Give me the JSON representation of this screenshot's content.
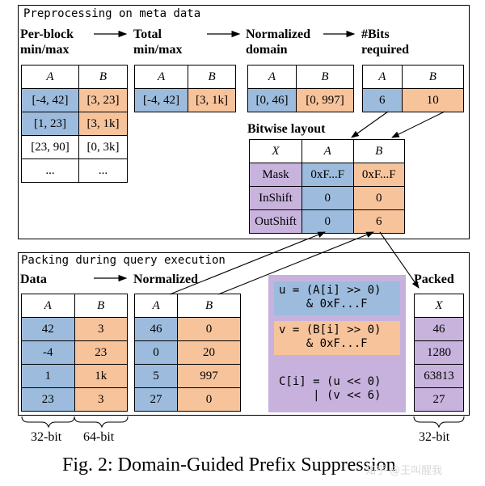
{
  "top": {
    "title": "Preprocessing on meta data",
    "heads": {
      "per_block": "Per-block\nmin/max",
      "total": "Total\nmin/max",
      "normalized": "Normalized\ndomain",
      "bits": "#Bits\nrequired",
      "bitwise": "Bitwise layout"
    },
    "per_block_table": {
      "cols": [
        "A",
        "B"
      ],
      "rows": [
        [
          "[-4, 42]",
          "[3, 23]"
        ],
        [
          "[1, 23]",
          "[3, 1k]"
        ],
        [
          "[23, 90]",
          "[0, 3k]"
        ],
        [
          "...",
          "..."
        ]
      ]
    },
    "total_table": {
      "cols": [
        "A",
        "B"
      ],
      "row": [
        "[-4, 42]",
        "[3, 1k]"
      ]
    },
    "norm_table": {
      "cols": [
        "A",
        "B"
      ],
      "row": [
        "[0, 46]",
        "[0, 997]"
      ]
    },
    "bits_table": {
      "cols": [
        "A",
        "B"
      ],
      "row": [
        "6",
        "10"
      ]
    },
    "layout_table": {
      "cols": [
        "X",
        "A",
        "B"
      ],
      "rows": [
        [
          "Mask",
          "0xF...F",
          "0xF...F"
        ],
        [
          "InShift",
          "0",
          "0"
        ],
        [
          "OutShift",
          "0",
          "6"
        ]
      ]
    }
  },
  "bottom": {
    "title": "Packing during query execution",
    "heads": {
      "data": "Data",
      "normalized": "Normalized",
      "packed": "Packed"
    },
    "data_table": {
      "cols": [
        "A",
        "B"
      ],
      "rows": [
        [
          "42",
          "3"
        ],
        [
          "-4",
          "23"
        ],
        [
          "1",
          "1k"
        ],
        [
          "23",
          "3"
        ]
      ]
    },
    "norm_table": {
      "cols": [
        "A",
        "B"
      ],
      "rows": [
        [
          "46",
          "0"
        ],
        [
          "0",
          "20"
        ],
        [
          "5",
          "997"
        ],
        [
          "27",
          "0"
        ]
      ]
    },
    "code": {
      "u": "u = (A[i] >> 0)\n    & 0xF...F",
      "v": "v = (B[i] >> 0)\n    & 0xF...F",
      "c": "C[i] = (u << 0)\n     | (v << 6)"
    },
    "packed_table": {
      "cols": [
        "X"
      ],
      "rows": [
        [
          "46"
        ],
        [
          "1280"
        ],
        [
          "63813"
        ],
        [
          "27"
        ]
      ]
    }
  },
  "labels": {
    "a_bits": "32-bit",
    "b_bits": "64-bit",
    "x_bits": "32-bit"
  },
  "caption": "Fig. 2: Domain-Guided Prefix Suppression",
  "watermark": "知乎 @王叫醒我"
}
